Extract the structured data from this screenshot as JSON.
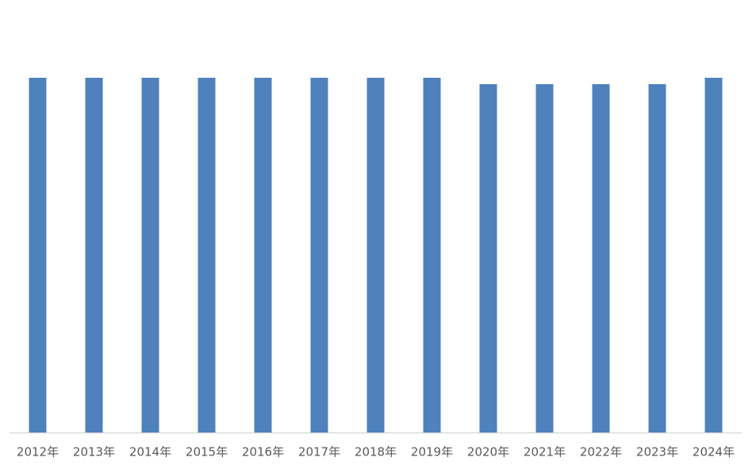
{
  "chart_data": {
    "type": "bar",
    "categories": [
      "2012年",
      "2013年",
      "2014年",
      "2015年",
      "2016年",
      "2017年",
      "2018年",
      "2019年",
      "2020年",
      "2021年",
      "2022年",
      "2023年",
      "2024年"
    ],
    "values": [
      100,
      100,
      100,
      100,
      100,
      100,
      100,
      100,
      98.2,
      98.2,
      98.2,
      98.2,
      100
    ],
    "color": "#4f81bd",
    "ylim": [
      0,
      120
    ]
  }
}
